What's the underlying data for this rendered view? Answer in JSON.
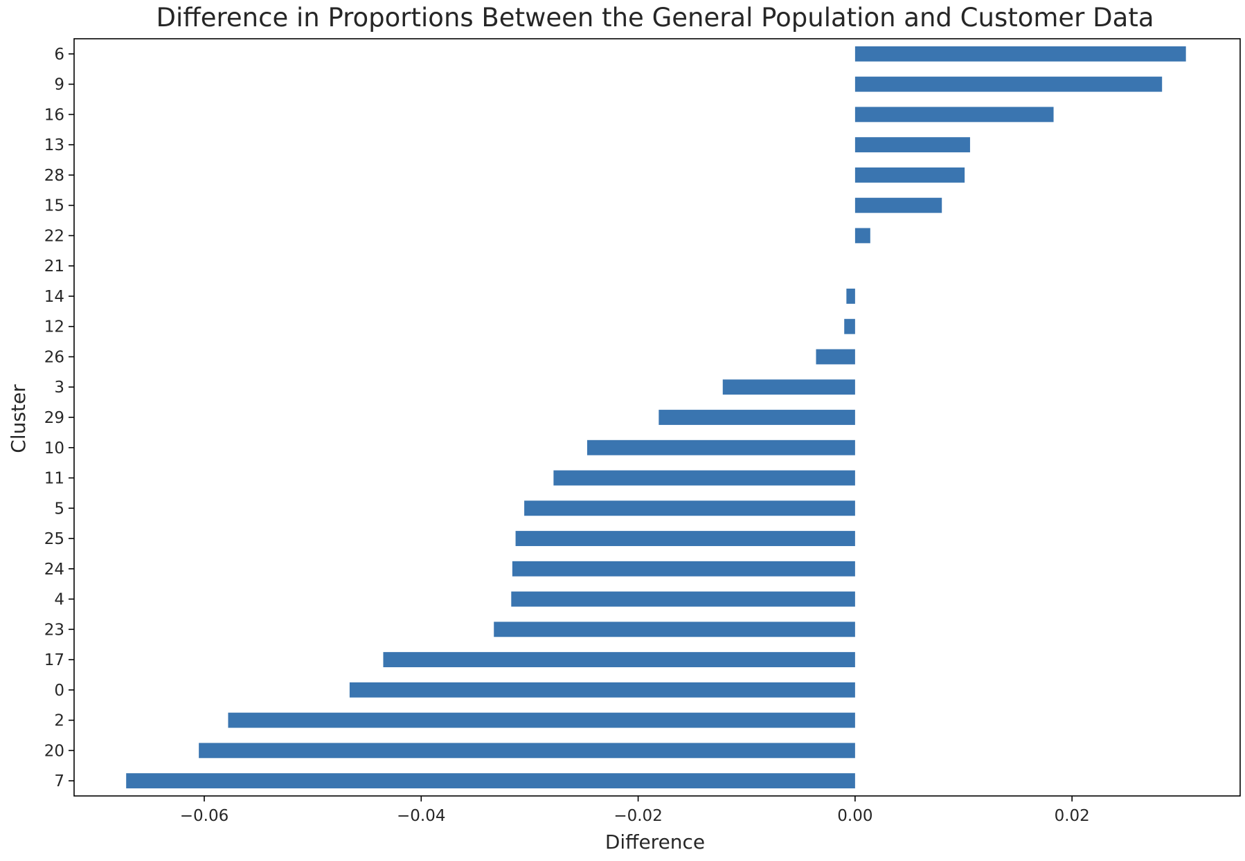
{
  "chart_data": {
    "type": "bar",
    "orientation": "horizontal",
    "title": "Difference in Proportions Between the General Population and Customer Data",
    "xlabel": "Difference",
    "ylabel": "Cluster",
    "xlim": [
      -0.072,
      0.0355
    ],
    "xticks": [
      -0.06,
      -0.04,
      -0.02,
      0.0,
      0.02
    ],
    "xtick_labels": [
      "−0.06",
      "−0.04",
      "−0.02",
      "0.00",
      "0.02"
    ],
    "grid": false,
    "legend": "none",
    "bar_color": "#3a75b0",
    "categories": [
      "6",
      "9",
      "16",
      "13",
      "28",
      "15",
      "22",
      "21",
      "14",
      "12",
      "26",
      "3",
      "29",
      "10",
      "11",
      "5",
      "25",
      "24",
      "4",
      "23",
      "17",
      "0",
      "2",
      "20",
      "7"
    ],
    "values": [
      0.0305,
      0.0283,
      0.0183,
      0.0106,
      0.0101,
      0.008,
      0.0014,
      0.0,
      -0.0008,
      -0.001,
      -0.0036,
      -0.0122,
      -0.0181,
      -0.0247,
      -0.0278,
      -0.0305,
      -0.0313,
      -0.0316,
      -0.0317,
      -0.0333,
      -0.0435,
      -0.0466,
      -0.0578,
      -0.0605,
      -0.0672
    ]
  }
}
